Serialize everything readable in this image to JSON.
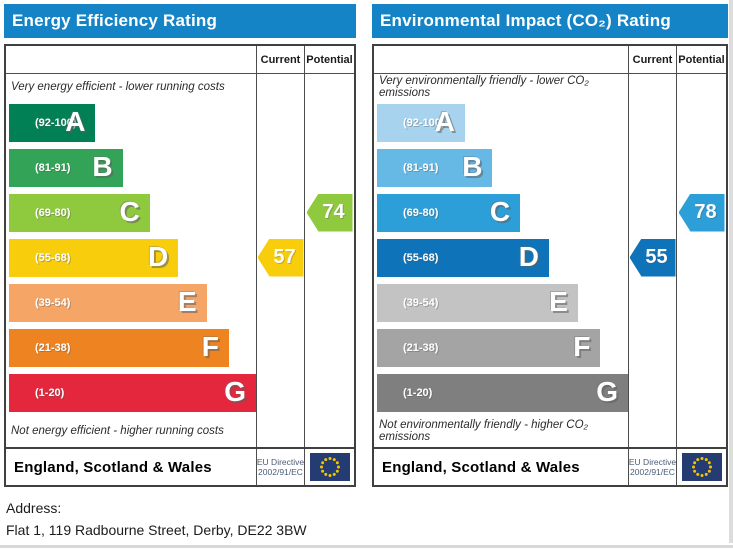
{
  "theme": {
    "title_bar_color": "#1584c6",
    "table_border_color": "#404040",
    "eu_flag_field_color": "#243c72",
    "eu_flag_star_color": "#f4c400"
  },
  "panels": [
    {
      "title": "Energy Efficiency Rating",
      "columns": {
        "current": "Current",
        "potential": "Potential"
      },
      "top_caption": "Very energy efficient - lower running costs",
      "bottom_caption": "Not energy efficient - higher running costs",
      "bands": [
        {
          "grade": "A",
          "range": "(92-100)",
          "color": "#008054",
          "width_pct": 35
        },
        {
          "grade": "B",
          "range": "(81-91)",
          "color": "#33a357",
          "width_pct": 46
        },
        {
          "grade": "C",
          "range": "(69-80)",
          "color": "#8fc93e",
          "width_pct": 57
        },
        {
          "grade": "D",
          "range": "(55-68)",
          "color": "#f8ce0c",
          "width_pct": 68.5
        },
        {
          "grade": "E",
          "range": "(39-54)",
          "color": "#f5a566",
          "width_pct": 80
        },
        {
          "grade": "F",
          "range": "(21-38)",
          "color": "#ee8322",
          "width_pct": 89
        },
        {
          "grade": "G",
          "range": "(1-20)",
          "color": "#e4273c",
          "width_pct": 100
        }
      ],
      "current": {
        "value": "57",
        "band": "D",
        "color": "#f8ce0c"
      },
      "potential": {
        "value": "74",
        "band": "C",
        "color": "#8fc93e"
      },
      "footer": {
        "region": "England, Scotland & Wales",
        "directive_line1": "EU Directive",
        "directive_line2": "2002/91/EC",
        "flag_icon": "eu-flag"
      }
    },
    {
      "title": "Environmental Impact (CO₂) Rating",
      "columns": {
        "current": "Current",
        "potential": "Potential"
      },
      "top_caption": "Very environmentally friendly - lower CO₂ emissions",
      "bottom_caption": "Not environmentally friendly - higher CO₂ emissions",
      "bands": [
        {
          "grade": "A",
          "range": "(92-100)",
          "color": "#a7d3ee",
          "width_pct": 35
        },
        {
          "grade": "B",
          "range": "(81-91)",
          "color": "#66b8e5",
          "width_pct": 46
        },
        {
          "grade": "C",
          "range": "(69-80)",
          "color": "#2d9fd8",
          "width_pct": 57
        },
        {
          "grade": "D",
          "range": "(55-68)",
          "color": "#0f73ba",
          "width_pct": 68.5
        },
        {
          "grade": "E",
          "range": "(39-54)",
          "color": "#c3c3c3",
          "width_pct": 80
        },
        {
          "grade": "F",
          "range": "(21-38)",
          "color": "#a4a4a4",
          "width_pct": 89
        },
        {
          "grade": "G",
          "range": "(1-20)",
          "color": "#7f7f7f",
          "width_pct": 100
        }
      ],
      "current": {
        "value": "55",
        "band": "D",
        "color": "#0f73ba"
      },
      "potential": {
        "value": "78",
        "band": "C",
        "color": "#2d9fd8"
      },
      "footer": {
        "region": "England, Scotland & Wales",
        "directive_line1": "EU Directive",
        "directive_line2": "2002/91/EC",
        "flag_icon": "eu-flag"
      }
    }
  ],
  "address": {
    "label": "Address:",
    "value": "Flat 1, 119 Radbourne Street, Derby, DE22 3BW"
  },
  "chart_data": [
    {
      "type": "bar",
      "title": "Energy Efficiency Rating",
      "categories": [
        "A (92-100)",
        "B (81-91)",
        "C (69-80)",
        "D (55-68)",
        "E (39-54)",
        "F (21-38)",
        "G (1-20)"
      ],
      "scale_range": [
        1,
        100
      ],
      "current": {
        "value": 57,
        "band": "D"
      },
      "potential": {
        "value": 74,
        "band": "C"
      },
      "region": "England, Scotland & Wales",
      "directive": "EU Directive 2002/91/EC"
    },
    {
      "type": "bar",
      "title": "Environmental Impact (CO₂) Rating",
      "categories": [
        "A (92-100)",
        "B (81-91)",
        "C (69-80)",
        "D (55-68)",
        "E (39-54)",
        "F (21-38)",
        "G (1-20)"
      ],
      "scale_range": [
        1,
        100
      ],
      "current": {
        "value": 55,
        "band": "D"
      },
      "potential": {
        "value": 78,
        "band": "C"
      },
      "region": "England, Scotland & Wales",
      "directive": "EU Directive 2002/91/EC"
    }
  ]
}
